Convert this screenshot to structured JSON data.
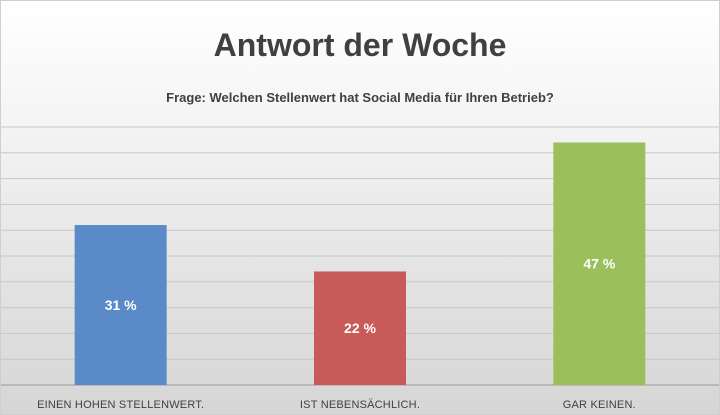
{
  "chart_data": {
    "type": "bar",
    "title": "Antwort der Woche",
    "subtitle": "Frage: Welchen Stellenwert hat Social Media für Ihren Betrieb?",
    "categories": [
      "EINEN HOHEN STELLENWERT.",
      "IST NEBENSÄCHLICH.",
      "GAR KEINEN."
    ],
    "values": [
      31,
      22,
      47
    ],
    "data_labels": [
      "31 %",
      "22 %",
      "47 %"
    ],
    "colors": [
      "#5b8ac9",
      "#c85a58",
      "#9bbf5b"
    ],
    "unit": "%",
    "ylim": [
      0,
      50
    ],
    "grid": true,
    "legend": "none"
  }
}
